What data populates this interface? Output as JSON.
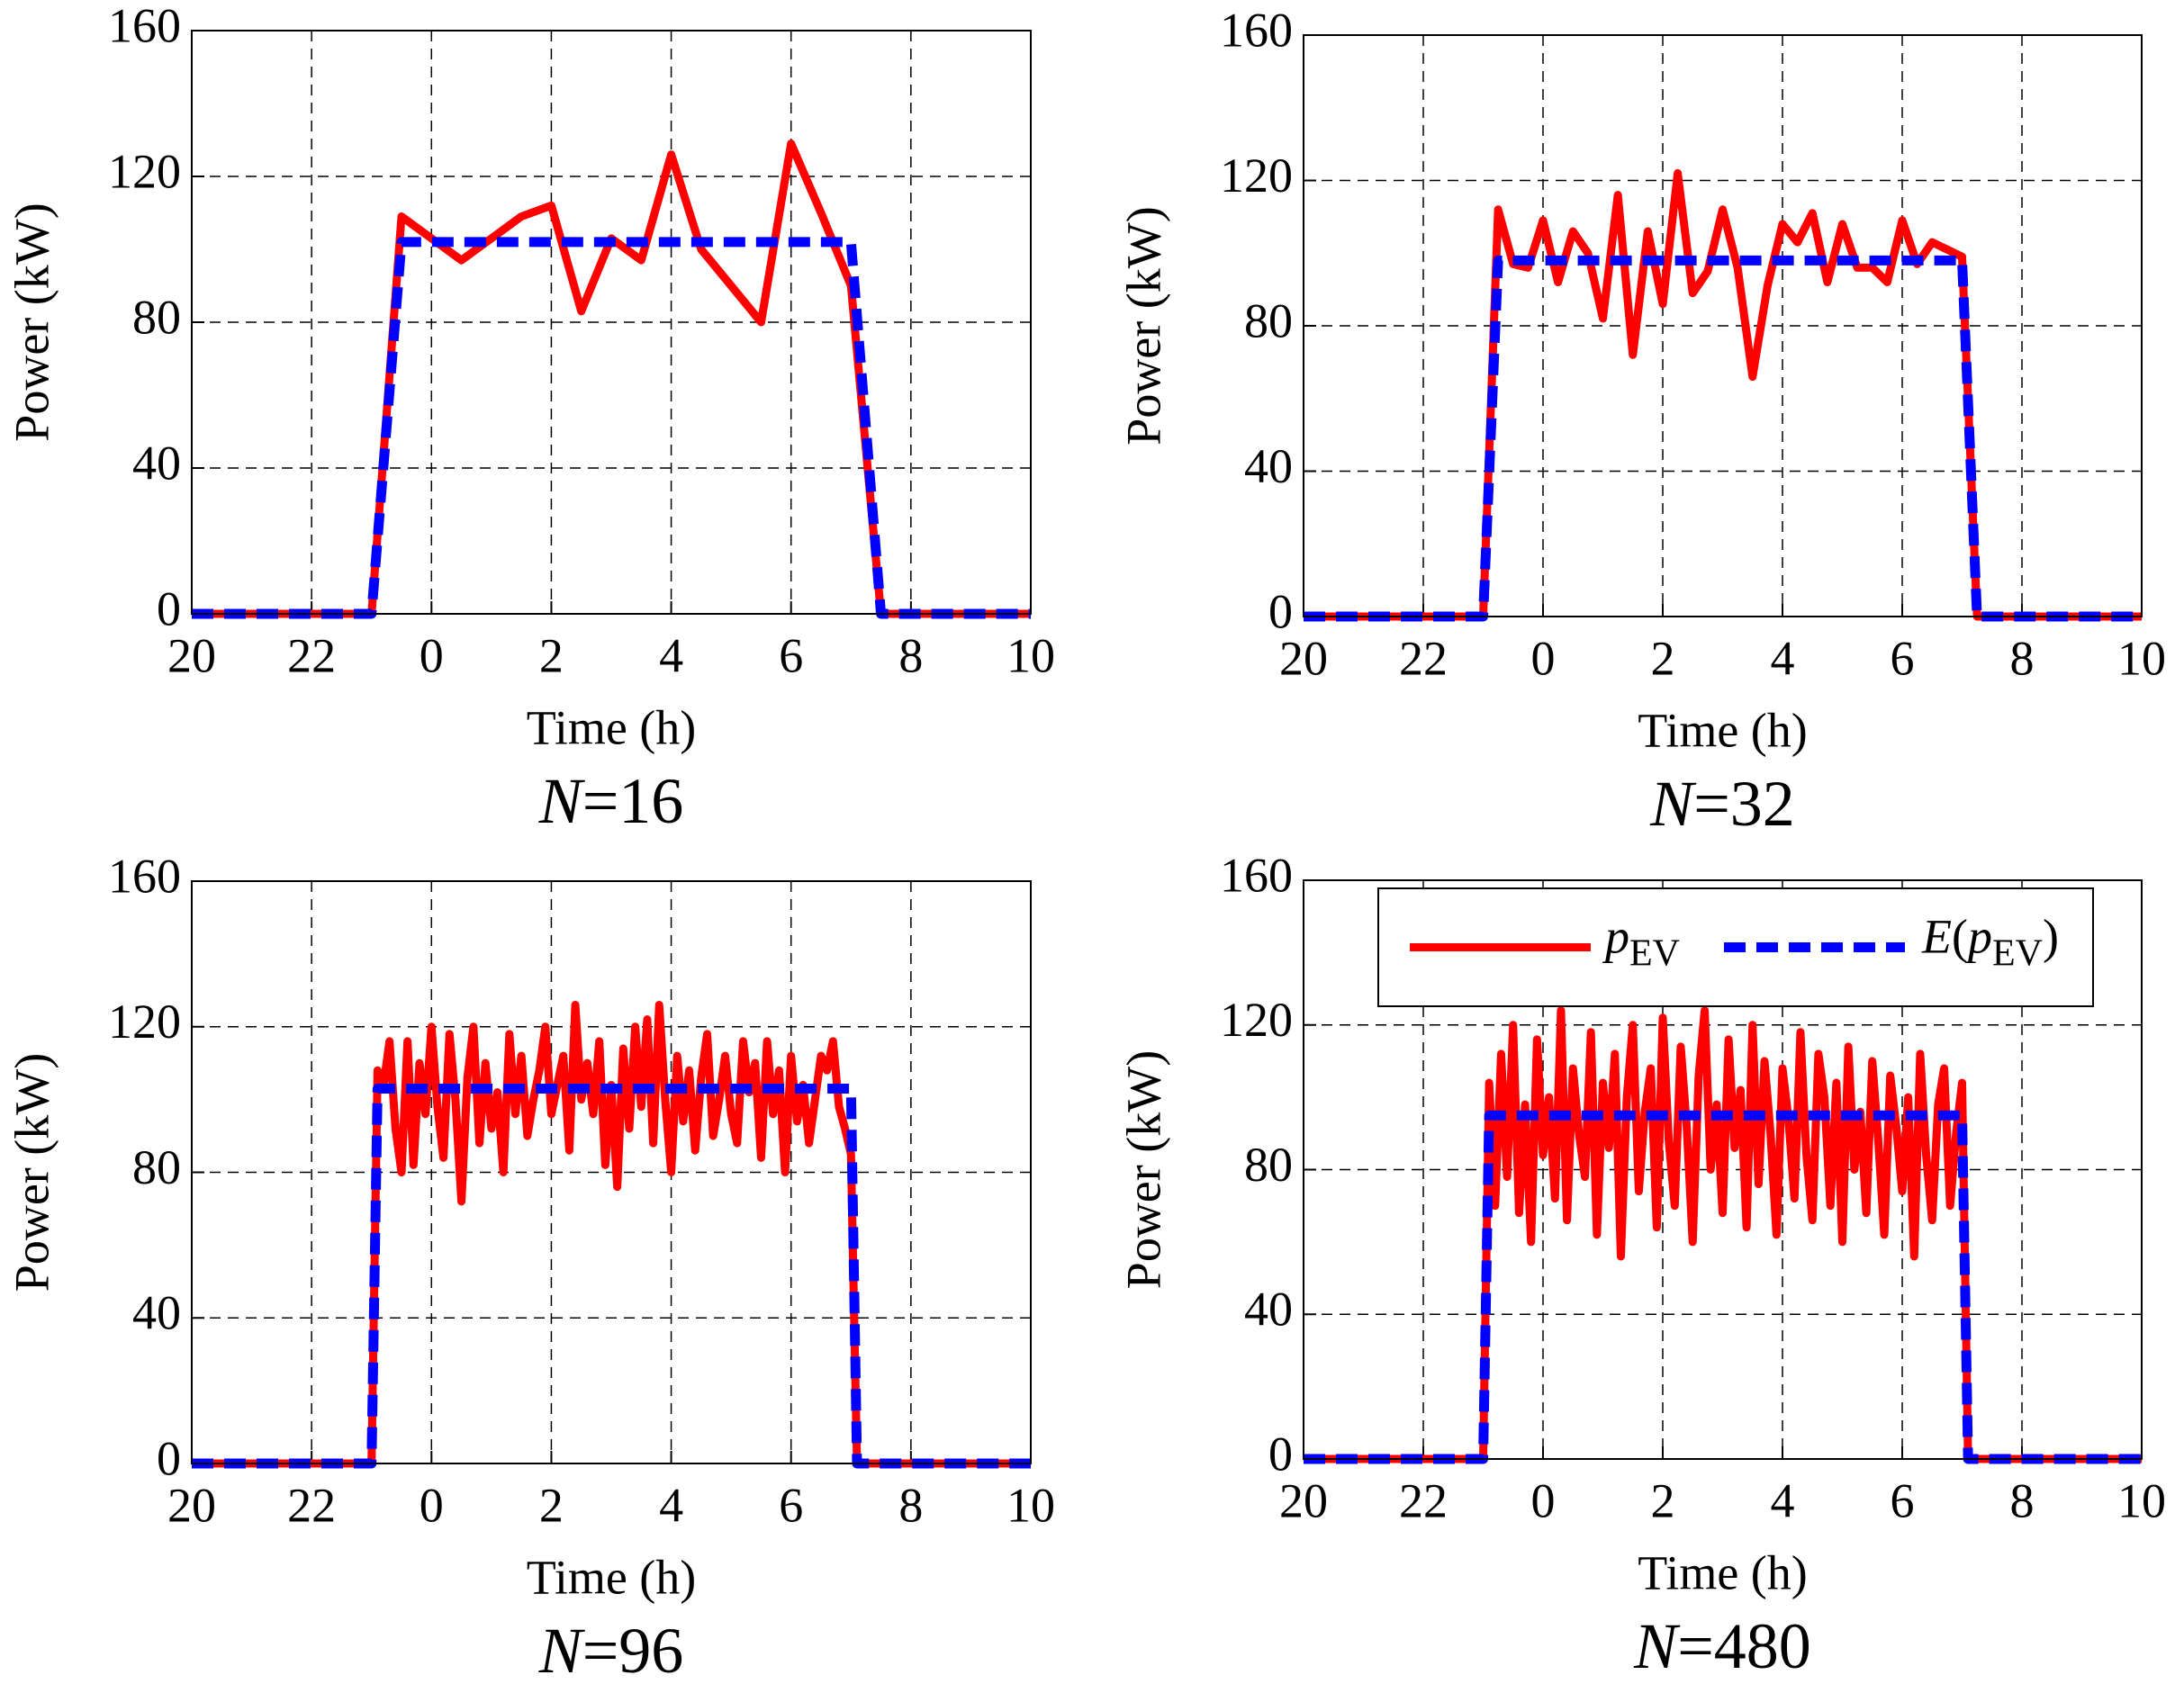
{
  "chart_data": [
    {
      "type": "line",
      "title": "N=16",
      "xlabel": "Time (h)",
      "ylabel": "Power (kW)",
      "x": [
        20,
        23,
        23.5,
        24,
        24.5,
        25,
        25.5,
        26,
        26.5,
        27,
        27.5,
        28,
        28.5,
        29,
        29.5,
        30,
        30.5,
        31,
        31.5,
        34
      ],
      "series": [
        {
          "color": "#ff0000",
          "linestyle": "solid",
          "values": [
            0,
            0,
            109,
            103,
            97,
            103,
            109,
            112,
            83,
            103,
            97,
            126,
            100,
            90,
            80,
            129,
            110,
            90,
            0,
            0
          ]
        },
        {
          "color": "#0000ff",
          "linestyle": "dashed",
          "values": [
            0,
            0,
            102,
            102,
            102,
            102,
            102,
            102,
            102,
            102,
            102,
            102,
            102,
            102,
            102,
            102,
            102,
            102,
            0,
            0
          ]
        }
      ],
      "xlim": [
        20,
        34
      ],
      "ylim": [
        0,
        160
      ],
      "xticks": [
        20,
        22,
        {
          "value": 24,
          "label": "0"
        },
        {
          "value": 26,
          "label": "2"
        },
        {
          "value": 28,
          "label": "4"
        },
        {
          "value": 30,
          "label": "6"
        },
        {
          "value": 32,
          "label": "8"
        },
        {
          "value": 34,
          "label": "10"
        }
      ],
      "yticks": [
        0,
        40,
        80,
        120,
        160
      ],
      "grid": true
    },
    {
      "type": "line",
      "title": "N=32",
      "xlabel": "Time (h)",
      "ylabel": "Power (kW)",
      "x": [
        20,
        23,
        23.25,
        23.5,
        23.75,
        24,
        24.25,
        24.5,
        24.75,
        25,
        25.25,
        25.5,
        25.75,
        26,
        26.25,
        26.5,
        26.75,
        27,
        27.25,
        27.5,
        27.75,
        28,
        28.25,
        28.5,
        28.75,
        29,
        29.25,
        29.5,
        29.75,
        30,
        30.25,
        30.5,
        30.75,
        31,
        31.25,
        34
      ],
      "series": [
        {
          "color": "#ff0000",
          "linestyle": "solid",
          "values": [
            0,
            0,
            112,
            97,
            96,
            109,
            92,
            106,
            100,
            82,
            116,
            72,
            106,
            86,
            122,
            89,
            95,
            112,
            96,
            66,
            91,
            108,
            103,
            111,
            92,
            108,
            96,
            96,
            92,
            109,
            97,
            103,
            101,
            99,
            0,
            0
          ]
        },
        {
          "color": "#0000ff",
          "linestyle": "dashed",
          "values": [
            0,
            0,
            98,
            98,
            98,
            98,
            98,
            98,
            98,
            98,
            98,
            98,
            98,
            98,
            98,
            98,
            98,
            98,
            98,
            98,
            98,
            98,
            98,
            98,
            98,
            98,
            98,
            98,
            98,
            98,
            98,
            98,
            98,
            98,
            0,
            0
          ]
        }
      ],
      "xlim": [
        20,
        34
      ],
      "ylim": [
        0,
        160
      ],
      "xticks": [
        20,
        22,
        {
          "value": 24,
          "label": "0"
        },
        {
          "value": 26,
          "label": "2"
        },
        {
          "value": 28,
          "label": "4"
        },
        {
          "value": 30,
          "label": "6"
        },
        {
          "value": 32,
          "label": "8"
        },
        {
          "value": 34,
          "label": "10"
        }
      ],
      "yticks": [
        0,
        40,
        80,
        120,
        160
      ],
      "grid": true
    },
    {
      "type": "line",
      "title": "N=96",
      "xlabel": "Time (h)",
      "ylabel": "Power (kW)",
      "x": [
        20,
        23,
        23.1,
        23.2,
        23.3,
        23.4,
        23.5,
        23.6,
        23.7,
        23.8,
        23.9,
        24,
        24.1,
        24.2,
        24.3,
        24.4,
        24.5,
        24.6,
        24.7,
        24.8,
        24.9,
        25,
        25.1,
        25.2,
        25.3,
        25.4,
        25.5,
        25.6,
        25.7,
        25.8,
        25.9,
        26,
        26.1,
        26.2,
        26.3,
        26.4,
        26.5,
        26.6,
        26.7,
        26.8,
        26.9,
        27,
        27.1,
        27.2,
        27.3,
        27.4,
        27.5,
        27.6,
        27.7,
        27.8,
        27.9,
        28,
        28.1,
        28.2,
        28.3,
        28.4,
        28.5,
        28.6,
        28.7,
        28.8,
        28.9,
        29,
        29.1,
        29.2,
        29.3,
        29.4,
        29.5,
        29.6,
        29.7,
        29.8,
        29.9,
        30,
        30.1,
        30.2,
        30.3,
        30.4,
        30.5,
        30.6,
        30.7,
        30.8,
        30.9,
        31,
        31.1,
        34
      ],
      "series": [
        {
          "color": "#ff0000",
          "linestyle": "solid",
          "values": [
            0,
            0,
            108,
            104,
            116,
            92,
            80,
            116,
            82,
            110,
            96,
            120,
            98,
            84,
            118,
            100,
            72,
            106,
            120,
            88,
            110,
            92,
            102,
            80,
            118,
            96,
            112,
            90,
            100,
            108,
            120,
            96,
            104,
            112,
            86,
            126,
            100,
            110,
            96,
            116,
            82,
            104,
            76,
            114,
            92,
            120,
            98,
            122,
            88,
            126,
            100,
            80,
            112,
            94,
            108,
            86,
            106,
            118,
            90,
            100,
            112,
            96,
            88,
            116,
            102,
            110,
            84,
            116,
            96,
            108,
            80,
            112,
            94,
            104,
            88,
            100,
            112,
            108,
            116,
            98,
            92,
            85,
            0,
            0
          ]
        },
        {
          "color": "#0000ff",
          "linestyle": "dashed",
          "values": [
            0,
            0,
            103,
            103,
            103,
            103,
            103,
            103,
            103,
            103,
            103,
            103,
            103,
            103,
            103,
            103,
            103,
            103,
            103,
            103,
            103,
            103,
            103,
            103,
            103,
            103,
            103,
            103,
            103,
            103,
            103,
            103,
            103,
            103,
            103,
            103,
            103,
            103,
            103,
            103,
            103,
            103,
            103,
            103,
            103,
            103,
            103,
            103,
            103,
            103,
            103,
            103,
            103,
            103,
            103,
            103,
            103,
            103,
            103,
            103,
            103,
            103,
            103,
            103,
            103,
            103,
            103,
            103,
            103,
            103,
            103,
            103,
            103,
            103,
            103,
            103,
            103,
            103,
            103,
            103,
            103,
            103,
            0,
            0
          ]
        }
      ],
      "xlim": [
        20,
        34
      ],
      "ylim": [
        0,
        160
      ],
      "xticks": [
        20,
        22,
        {
          "value": 24,
          "label": "0"
        },
        {
          "value": 26,
          "label": "2"
        },
        {
          "value": 28,
          "label": "4"
        },
        {
          "value": 30,
          "label": "6"
        },
        {
          "value": 32,
          "label": "8"
        },
        {
          "value": 34,
          "label": "10"
        }
      ],
      "yticks": [
        0,
        40,
        80,
        120,
        160
      ],
      "grid": true
    },
    {
      "type": "line",
      "title": "N=480",
      "xlabel": "Time (h)",
      "ylabel": "Power (kW)",
      "x": [
        20,
        23,
        23.1,
        23.2,
        23.3,
        23.4,
        23.5,
        23.6,
        23.7,
        23.8,
        23.9,
        24,
        24.1,
        24.2,
        24.3,
        24.4,
        24.5,
        24.6,
        24.7,
        24.8,
        24.9,
        25,
        25.1,
        25.2,
        25.3,
        25.4,
        25.5,
        25.6,
        25.7,
        25.8,
        25.9,
        26,
        26.1,
        26.2,
        26.3,
        26.4,
        26.5,
        26.6,
        26.7,
        26.8,
        26.9,
        27,
        27.1,
        27.2,
        27.3,
        27.4,
        27.5,
        27.6,
        27.7,
        27.8,
        27.9,
        28,
        28.1,
        28.2,
        28.3,
        28.4,
        28.5,
        28.6,
        28.7,
        28.8,
        28.9,
        29,
        29.1,
        29.2,
        29.3,
        29.4,
        29.5,
        29.6,
        29.7,
        29.8,
        29.9,
        30,
        30.1,
        30.2,
        30.3,
        30.4,
        30.5,
        30.6,
        30.7,
        30.8,
        30.9,
        31,
        31.1,
        34
      ],
      "series": [
        {
          "name": "pEV",
          "color": "#ff0000",
          "linestyle": "solid",
          "values": [
            0,
            0,
            104,
            70,
            112,
            78,
            120,
            68,
            98,
            60,
            116,
            84,
            100,
            72,
            124,
            66,
            108,
            90,
            78,
            118,
            62,
            104,
            86,
            112,
            56,
            100,
            120,
            74,
            96,
            108,
            64,
            122,
            88,
            70,
            114,
            92,
            60,
            106,
            124,
            80,
            98,
            68,
            116,
            86,
            102,
            64,
            120,
            76,
            110,
            90,
            62,
            108,
            94,
            72,
            118,
            84,
            66,
            112,
            100,
            70,
            104,
            60,
            114,
            80,
            96,
            68,
            110,
            88,
            62,
            106,
            92,
            74,
            100,
            56,
            112,
            84,
            66,
            98,
            108,
            70,
            90,
            104,
            0,
            0
          ]
        },
        {
          "name": "E(pEV)",
          "color": "#0000ff",
          "linestyle": "dashed",
          "values": [
            0,
            0,
            95,
            95,
            95,
            95,
            95,
            95,
            95,
            95,
            95,
            95,
            95,
            95,
            95,
            95,
            95,
            95,
            95,
            95,
            95,
            95,
            95,
            95,
            95,
            95,
            95,
            95,
            95,
            95,
            95,
            95,
            95,
            95,
            95,
            95,
            95,
            95,
            95,
            95,
            95,
            95,
            95,
            95,
            95,
            95,
            95,
            95,
            95,
            95,
            95,
            95,
            95,
            95,
            95,
            95,
            95,
            95,
            95,
            95,
            95,
            95,
            95,
            95,
            95,
            95,
            95,
            95,
            95,
            95,
            95,
            95,
            95,
            95,
            95,
            95,
            95,
            95,
            95,
            95,
            95,
            95,
            0,
            0
          ]
        }
      ],
      "xlim": [
        20,
        34
      ],
      "ylim": [
        0,
        160
      ],
      "xticks": [
        20,
        22,
        {
          "value": 24,
          "label": "0"
        },
        {
          "value": 26,
          "label": "2"
        },
        {
          "value": 28,
          "label": "4"
        },
        {
          "value": 30,
          "label": "6"
        },
        {
          "value": 32,
          "label": "8"
        },
        {
          "value": 34,
          "label": "10"
        }
      ],
      "yticks": [
        0,
        40,
        80,
        120,
        160
      ],
      "grid": true,
      "legend": "upper right"
    }
  ]
}
